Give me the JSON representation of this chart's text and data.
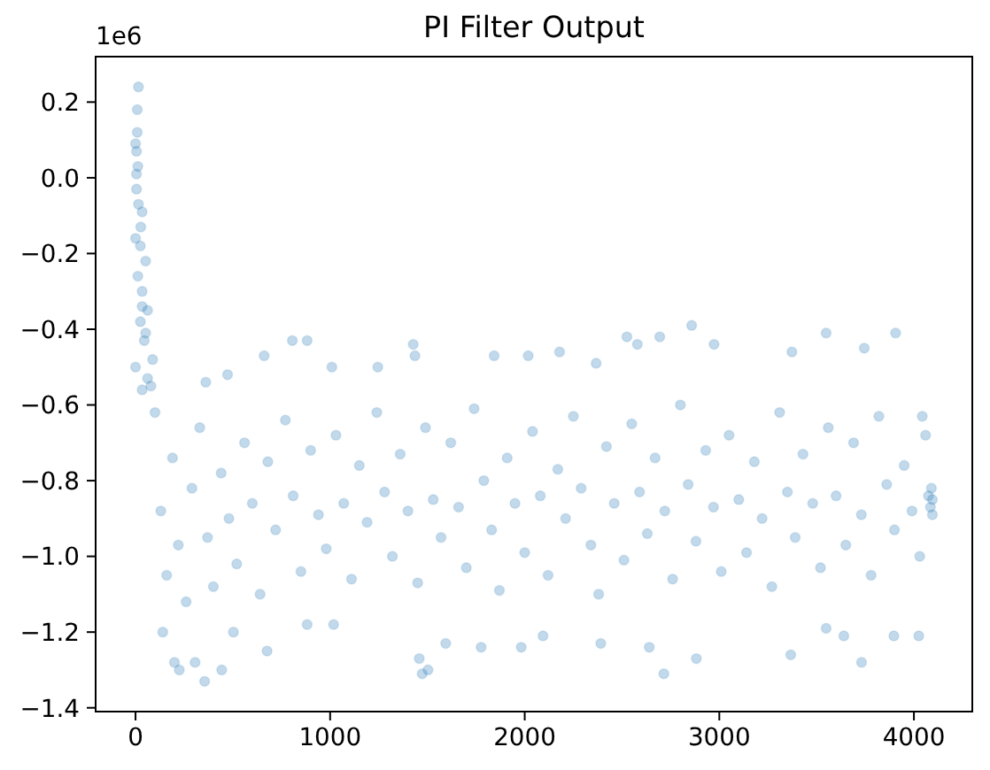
{
  "chart_data": {
    "type": "scatter",
    "title": "PI Filter Output",
    "annotations": [
      "1e6"
    ],
    "color": "#1f77b4",
    "marker": "circle",
    "x": [
      0,
      0,
      0,
      5,
      5,
      5,
      9,
      9,
      12,
      12,
      15,
      15,
      25,
      25,
      27,
      34,
      34,
      34,
      34,
      45,
      52,
      52,
      62,
      62,
      79,
      88,
      100,
      130,
      160,
      190,
      220,
      260,
      290,
      330,
      370,
      400,
      440,
      480,
      520,
      560,
      600,
      640,
      680,
      720,
      770,
      810,
      850,
      900,
      940,
      980,
      1030,
      1070,
      1110,
      1150,
      1190,
      1240,
      1280,
      1320,
      1360,
      1400,
      1450,
      1490,
      1530,
      1570,
      1620,
      1660,
      1700,
      1740,
      1790,
      1830,
      1870,
      1910,
      1950,
      2000,
      2040,
      2080,
      2120,
      2170,
      2210,
      2250,
      2290,
      2340,
      2380,
      2420,
      2460,
      2510,
      2550,
      2590,
      2630,
      2670,
      2720,
      2760,
      2800,
      2840,
      2880,
      2930,
      2970,
      3010,
      3050,
      3100,
      3140,
      3180,
      3220,
      3270,
      3310,
      3350,
      3390,
      3430,
      3480,
      3520,
      3560,
      3600,
      3650,
      3690,
      3730,
      3780,
      3820,
      3860,
      3900,
      3950,
      3990,
      4030,
      4060,
      4075,
      4085,
      4095,
      140,
      200,
      225,
      306,
      355,
      361,
      443,
      473,
      503,
      661,
      676,
      806,
      882,
      882,
      1009,
      1018,
      1245,
      1427,
      1436,
      1458,
      1473,
      1503,
      1594,
      1776,
      1843,
      1982,
      2018,
      2094,
      2179,
      2367,
      2391,
      2525,
      2579,
      2640,
      2694,
      2715,
      2858,
      2882,
      2973,
      3367,
      3373,
      3549,
      3549,
      3640,
      3731,
      3745,
      3897,
      3906,
      4025,
      4043,
      4090,
      4095
    ],
    "values": [
      0.09,
      -0.16,
      -0.5,
      0.07,
      0.01,
      -0.03,
      0.18,
      0.12,
      0.03,
      -0.26,
      0.24,
      -0.07,
      -0.18,
      -0.38,
      -0.13,
      -0.09,
      -0.3,
      -0.34,
      -0.56,
      -0.43,
      -0.22,
      -0.41,
      -0.35,
      -0.53,
      -0.55,
      -0.48,
      -0.62,
      -0.88,
      -1.05,
      -0.74,
      -0.97,
      -1.12,
      -0.82,
      -0.66,
      -0.95,
      -1.08,
      -0.78,
      -0.9,
      -1.02,
      -0.7,
      -0.86,
      -1.1,
      -0.75,
      -0.93,
      -0.64,
      -0.84,
      -1.04,
      -0.72,
      -0.89,
      -0.98,
      -0.68,
      -0.86,
      -1.06,
      -0.76,
      -0.91,
      -0.62,
      -0.83,
      -1.0,
      -0.73,
      -0.88,
      -1.07,
      -0.66,
      -0.85,
      -0.95,
      -0.7,
      -0.87,
      -1.03,
      -0.61,
      -0.8,
      -0.93,
      -1.09,
      -0.74,
      -0.86,
      -0.99,
      -0.67,
      -0.84,
      -1.05,
      -0.77,
      -0.9,
      -0.63,
      -0.82,
      -0.97,
      -1.1,
      -0.71,
      -0.86,
      -1.01,
      -0.65,
      -0.83,
      -0.94,
      -0.74,
      -0.88,
      -1.06,
      -0.6,
      -0.81,
      -0.96,
      -0.72,
      -0.87,
      -1.04,
      -0.68,
      -0.85,
      -0.99,
      -0.75,
      -0.9,
      -1.08,
      -0.62,
      -0.83,
      -0.95,
      -0.73,
      -0.86,
      -1.03,
      -0.66,
      -0.84,
      -0.97,
      -0.7,
      -0.89,
      -1.05,
      -0.63,
      -0.81,
      -0.93,
      -0.76,
      -0.88,
      -1.0,
      -0.68,
      -0.84,
      -0.87,
      -0.85,
      -1.2,
      -1.28,
      -1.3,
      -1.28,
      -1.33,
      -0.54,
      -1.3,
      -0.52,
      -1.2,
      -0.47,
      -1.25,
      -0.43,
      -0.43,
      -1.18,
      -0.5,
      -1.18,
      -0.5,
      -0.44,
      -0.47,
      -1.27,
      -1.31,
      -1.3,
      -1.23,
      -1.24,
      -0.47,
      -1.24,
      -0.47,
      -1.21,
      -0.46,
      -0.49,
      -1.23,
      -0.42,
      -0.44,
      -1.24,
      -0.42,
      -1.31,
      -0.39,
      -1.27,
      -0.44,
      -1.26,
      -0.46,
      -0.41,
      -1.19,
      -1.21,
      -1.28,
      -0.45,
      -1.21,
      -0.41,
      -1.21,
      -0.63,
      -0.82,
      -0.89
    ],
    "xlim": [
      -205,
      4300
    ],
    "ylim": [
      -1.41,
      0.32
    ],
    "xticks": [
      0,
      1000,
      2000,
      3000,
      4000
    ],
    "yticks": [
      {
        "value": -1.4,
        "label": "−1.4"
      },
      {
        "value": -1.2,
        "label": "−1.2"
      },
      {
        "value": -1.0,
        "label": "−1.0"
      },
      {
        "value": -0.8,
        "label": "−0.8"
      },
      {
        "value": -0.6,
        "label": "−0.6"
      },
      {
        "value": -0.4,
        "label": "−0.4"
      },
      {
        "value": -0.2,
        "label": "−0.2"
      },
      {
        "value": 0.0,
        "label": "0.0"
      },
      {
        "value": 0.2,
        "label": "0.2"
      }
    ]
  }
}
